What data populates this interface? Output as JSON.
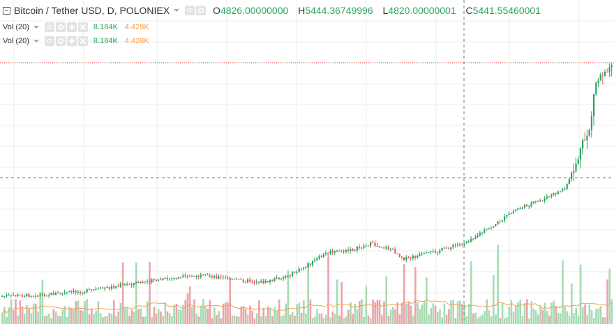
{
  "chart": {
    "symbol": "Bitcoin / Tether USD, D, POLONIEX",
    "ohlc": {
      "o_label": "O",
      "o_value": "4826.00000000",
      "h_label": "H",
      "h_value": "5444.36749996",
      "l_label": "L",
      "l_value": "4820.00000001",
      "c_label": "C",
      "c_value": "5441.55460001"
    },
    "volume_indicators": [
      {
        "label": "Vol (20)",
        "value_a": "8.184K",
        "value_b": "4.428K"
      },
      {
        "label": "Vol (20)",
        "value_a": "8.184K",
        "value_b": "4.428K"
      }
    ],
    "icons": [
      "collapse-icon",
      "dropdown-caret-icon",
      "eye-icon",
      "gear-icon",
      "plus-icon",
      "close-icon"
    ],
    "colors": {
      "up": "#26a65b",
      "down": "#e05c5c",
      "volume_up": "#a6dbb3",
      "volume_down": "#eba4a9",
      "volume_ma": "#f5a050",
      "last_price_line": "#d32f2f",
      "crosshair": "#777777",
      "grid": "#eeeeee",
      "text": "#333333",
      "value_green": "#26a65b",
      "value_orange": "#f5a050"
    }
  }
}
